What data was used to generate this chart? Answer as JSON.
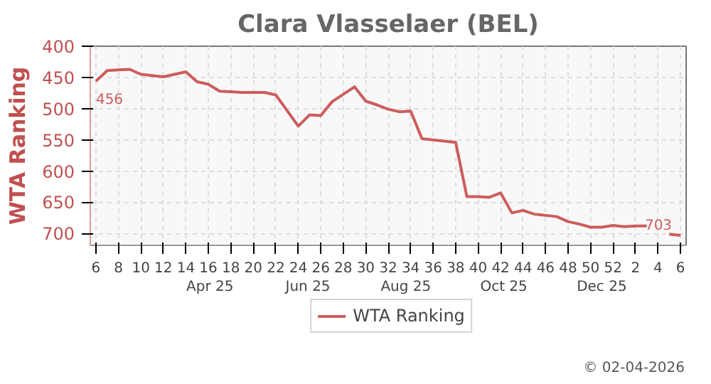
{
  "chart_data": {
    "type": "line",
    "title": "Clara Vlasselaer (BEL)",
    "ylabel": "WTA Ranking",
    "categories": [
      "6",
      null,
      "8",
      null,
      "10",
      null,
      "12",
      null,
      "14",
      null,
      "16",
      null,
      "18",
      null,
      "20",
      null,
      "22",
      null,
      "24",
      null,
      "26",
      null,
      "28",
      null,
      "30",
      null,
      "32",
      null,
      "34",
      null,
      "36",
      null,
      "38",
      null,
      "40",
      null,
      "42",
      null,
      "44",
      null,
      "46",
      null,
      "48",
      null,
      "50",
      null,
      "52",
      null,
      "2",
      null,
      "4",
      null,
      "6"
    ],
    "series": [
      {
        "name": "WTA Ranking",
        "color": "#cd5c5c",
        "values": [
          456,
          439,
          438,
          437,
          445,
          447,
          449,
          445,
          441,
          457,
          461,
          472,
          473,
          474,
          474,
          474,
          478,
          503,
          528,
          510,
          511,
          489,
          477,
          465,
          488,
          494,
          501,
          505,
          504,
          548,
          550,
          552,
          554,
          641,
          641,
          642,
          635,
          667,
          663,
          669,
          671,
          673,
          681,
          685,
          690,
          690,
          687,
          689,
          688,
          688,
          null,
          701,
          703
        ]
      }
    ],
    "x2lim": [
      "2025-01-30T12:00",
      "2026-02-05T12:00"
    ],
    "x2ticks": [
      {
        "value": "2025-04-15",
        "label": "Apr 25"
      },
      {
        "value": "2025-06-15",
        "label": "Jun 25"
      },
      {
        "value": "2025-08-15",
        "label": "Aug 25"
      },
      {
        "value": "2025-10-15",
        "label": "Oct 25"
      },
      {
        "value": "2025-12-15",
        "label": "Dec 25"
      }
    ],
    "ylim": [
      719,
      400
    ],
    "yticks": [
      400,
      450,
      500,
      550,
      600,
      650,
      700
    ],
    "grid": true,
    "legend": "bottom",
    "line_style": "solid",
    "marker": "none",
    "annotations": [
      "456",
      "703",
      "© 02-04-2026"
    ]
  }
}
